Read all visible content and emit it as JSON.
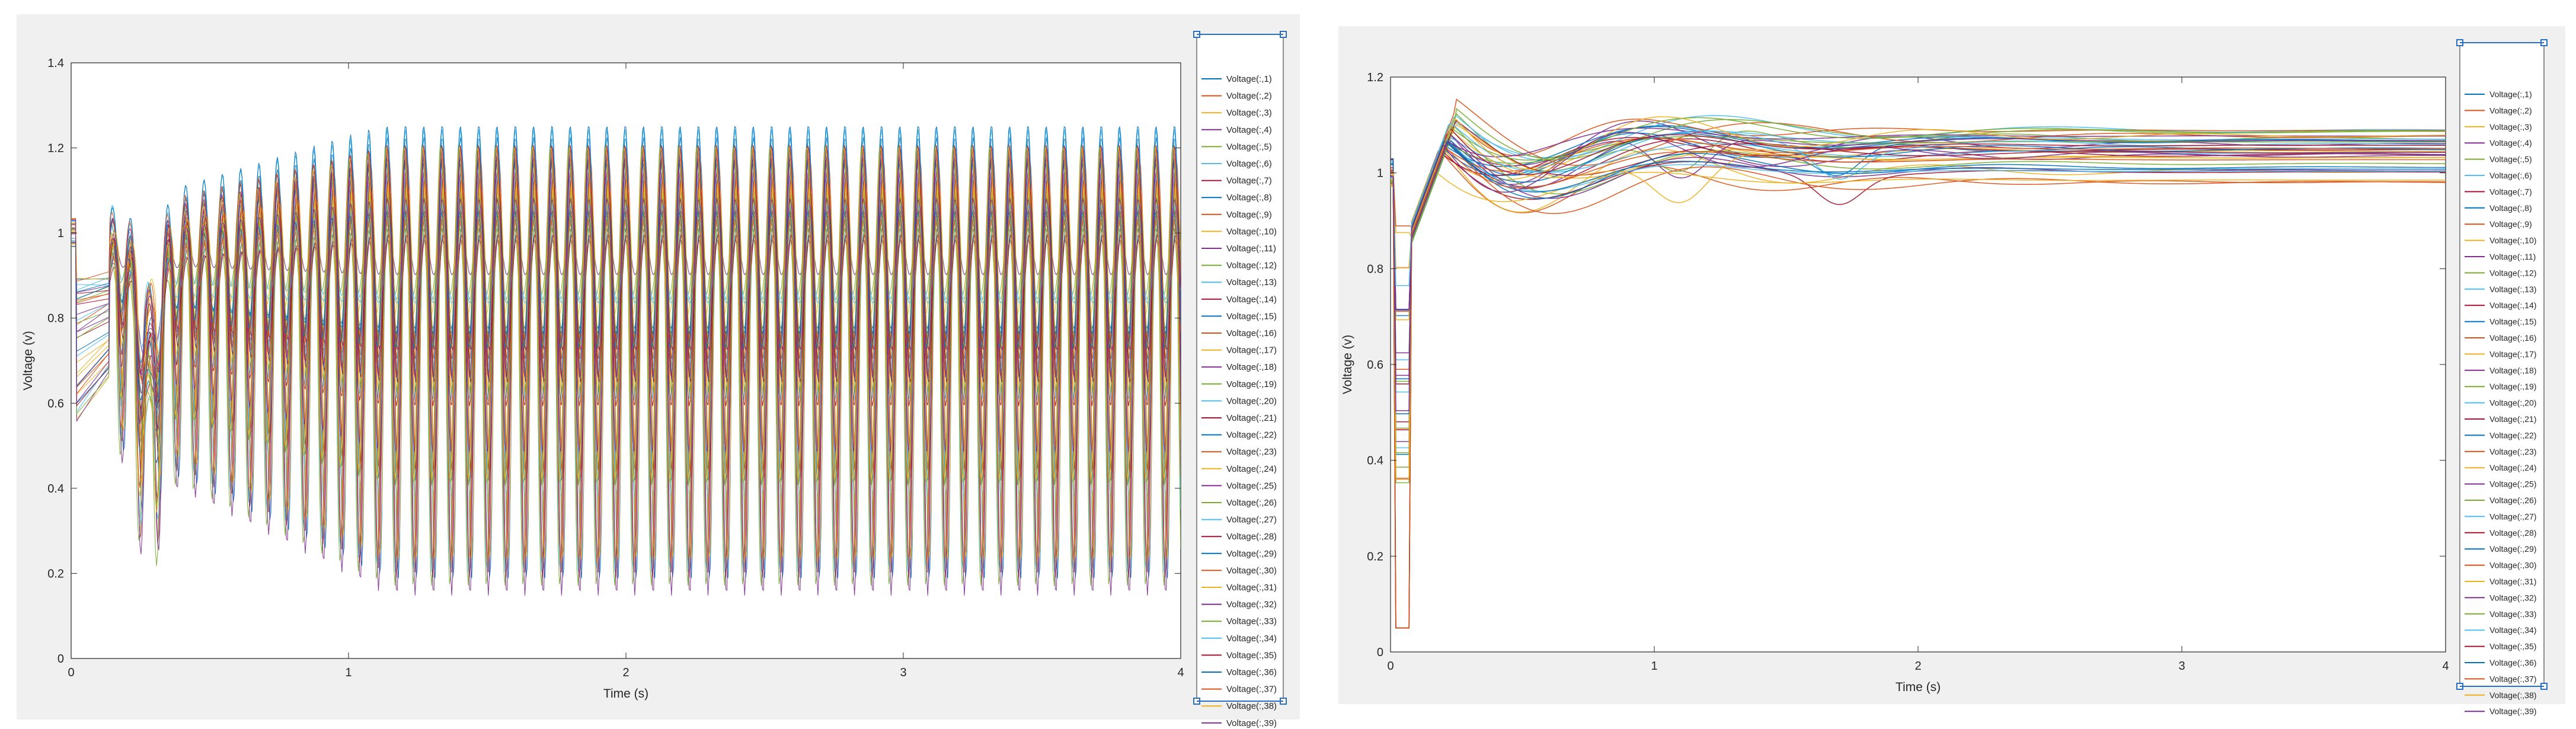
{
  "chart_data": [
    {
      "type": "line",
      "title": "",
      "xlabel": "Time (s)",
      "ylabel": "Voltage (v)",
      "xlim": [
        0,
        4
      ],
      "ylim": [
        0,
        1.4
      ],
      "xticks": [
        "0",
        "1",
        "2",
        "3",
        "4"
      ],
      "yticks": [
        "0",
        "0.2",
        "0.4",
        "0.6",
        "0.8",
        "1",
        "1.2",
        "1.4"
      ],
      "grid": false,
      "legend_position": "outside-right",
      "legend_items": [
        "Voltage(:,1)",
        "Voltage(:,2)",
        "Voltage(:,3)",
        "Voltage(:,4)",
        "Voltage(:,5)",
        "Voltage(:,6)",
        "Voltage(:,7)",
        "Voltage(:,8)",
        "Voltage(:,9)",
        "Voltage(:,10)",
        "Voltage(:,11)",
        "Voltage(:,12)",
        "Voltage(:,13)",
        "Voltage(:,14)",
        "Voltage(:,15)",
        "Voltage(:,16)",
        "Voltage(:,17)",
        "Voltage(:,18)",
        "Voltage(:,19)",
        "Voltage(:,20)",
        "Voltage(:,21)",
        "Voltage(:,22)",
        "Voltage(:,23)",
        "Voltage(:,24)",
        "Voltage(:,25)",
        "Voltage(:,26)",
        "Voltage(:,27)",
        "Voltage(:,28)",
        "Voltage(:,29)",
        "Voltage(:,30)",
        "Voltage(:,31)",
        "Voltage(:,32)",
        "Voltage(:,33)",
        "Voltage(:,34)",
        "Voltage(:,35)",
        "Voltage(:,36)",
        "Voltage(:,37)",
        "Voltage(:,38)",
        "Voltage(:,39)"
      ],
      "behavior": {
        "description": "sustained oscillation",
        "oscillation_period_s": 0.066,
        "upper_envelope_max": 1.22,
        "lower_envelope_min": 0.02,
        "initial_value": 1.0
      }
    },
    {
      "type": "line",
      "title": "",
      "xlabel": "Time (s)",
      "ylabel": "Voltage (v)",
      "xlim": [
        0,
        4
      ],
      "ylim": [
        0,
        1.2
      ],
      "xticks": [
        "0",
        "1",
        "2",
        "3",
        "4"
      ],
      "yticks": [
        "0",
        "0.2",
        "0.4",
        "0.6",
        "0.8",
        "1",
        "1.2"
      ],
      "grid": false,
      "legend_position": "outside-right",
      "legend_items": [
        "Voltage(:,1)",
        "Voltage(:,2)",
        "Voltage(:,3)",
        "Voltage(:,4)",
        "Voltage(:,5)",
        "Voltage(:,6)",
        "Voltage(:,7)",
        "Voltage(:,8)",
        "Voltage(:,9)",
        "Voltage(:,10)",
        "Voltage(:,11)",
        "Voltage(:,12)",
        "Voltage(:,13)",
        "Voltage(:,14)",
        "Voltage(:,15)",
        "Voltage(:,16)",
        "Voltage(:,17)",
        "Voltage(:,18)",
        "Voltage(:,19)",
        "Voltage(:,20)",
        "Voltage(:,21)",
        "Voltage(:,22)",
        "Voltage(:,23)",
        "Voltage(:,24)",
        "Voltage(:,25)",
        "Voltage(:,26)",
        "Voltage(:,27)",
        "Voltage(:,28)",
        "Voltage(:,29)",
        "Voltage(:,30)",
        "Voltage(:,31)",
        "Voltage(:,32)",
        "Voltage(:,33)",
        "Voltage(:,34)",
        "Voltage(:,35)",
        "Voltage(:,36)",
        "Voltage(:,37)",
        "Voltage(:,38)",
        "Voltage(:,39)"
      ],
      "behavior": {
        "description": "damped, settles near 1.05",
        "peak_value": 1.17,
        "peak_time_s": 0.55,
        "settled_range": [
          0.97,
          1.09
        ]
      }
    }
  ],
  "colors": [
    "#0072BD",
    "#D95319",
    "#EDB120",
    "#7E2F8E",
    "#77AC30",
    "#4DBEEE",
    "#A2142F"
  ]
}
